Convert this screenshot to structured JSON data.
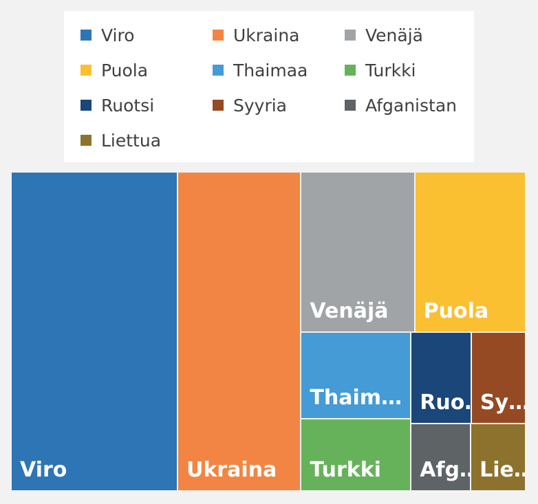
{
  "chart_data": {
    "type": "treemap",
    "title": "",
    "categories": [
      "Viro",
      "Ukraina",
      "Venäjä",
      "Puola",
      "Thaimaa",
      "Turkki",
      "Ruotsi",
      "Syyria",
      "Afganistan",
      "Liettua"
    ],
    "tile_labels": [
      "Viro",
      "Ukraina",
      "Venäjä",
      "Puola",
      "Thaim…",
      "Turkki",
      "Ruo…",
      "Sy…",
      "Afg…",
      "Lie…"
    ],
    "values": [
      49.0,
      36.3,
      16.8,
      16.4,
      8.8,
      7.3,
      5.1,
      4.6,
      3.7,
      3.4
    ],
    "colors": [
      "#2e75b6",
      "#f28543",
      "#a0a4a6",
      "#fbbf32",
      "#449bd6",
      "#66b25a",
      "#1a4679",
      "#964a23",
      "#5e6366",
      "#8d722d"
    ],
    "legend": {
      "position": "top",
      "items": [
        "Viro",
        "Ukraina",
        "Venäjä",
        "Puola",
        "Thaimaa",
        "Turkki",
        "Ruotsi",
        "Syyria",
        "Afganistan",
        "Liettua"
      ]
    },
    "grid": false
  }
}
